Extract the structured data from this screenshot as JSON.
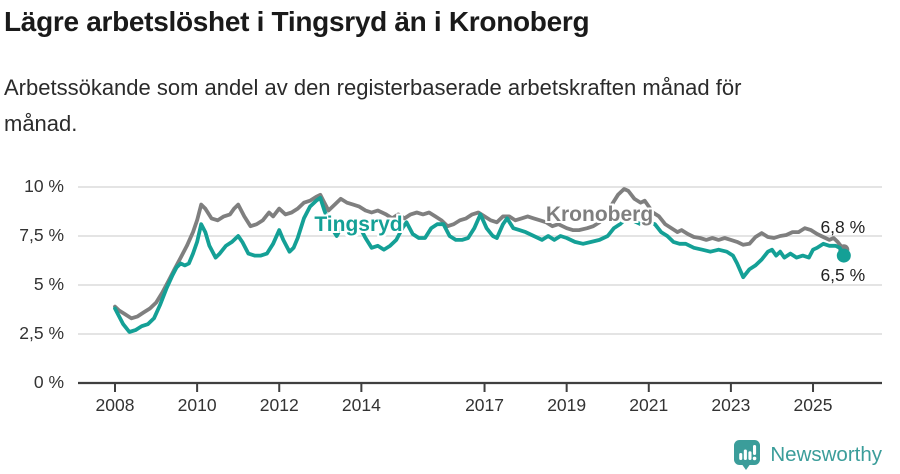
{
  "header": {
    "title": "Lägre arbetslöshet i Tingsryd än i Kronoberg",
    "subtitle": "Arbetssökande som andel av den registerbaserade arbetskraften månad för månad."
  },
  "footer": {
    "brand": "Newsworthy",
    "logo_icon": "bar-chart-speech-bubble-icon"
  },
  "colors": {
    "tingsryd_teal": "#14a096",
    "kronoberg_gray": "#7f7f7f",
    "gridline": "#dcdcdc",
    "axis": "#3f3f3f",
    "tick_text": "#333333",
    "title_text": "#1a1a1a",
    "brand_teal": "#3b9d9a"
  },
  "chart_data": {
    "type": "line",
    "title": "Lägre arbetslöshet i Tingsryd än i Kronoberg",
    "subtitle": "Arbetssökande som andel av den registerbaserade arbetskraften månad för månad.",
    "unit": "%",
    "grid": true,
    "legend_position": "inline-labels",
    "xlim": [
      2007.1,
      2026.7
    ],
    "ylim": [
      0,
      10.5
    ],
    "yticks": [
      {
        "value": 0,
        "label": "0 %"
      },
      {
        "value": 2.5,
        "label": "2,5 %"
      },
      {
        "value": 5,
        "label": "5 %"
      },
      {
        "value": 7.5,
        "label": "7,5 %"
      },
      {
        "value": 10,
        "label": "10 %"
      }
    ],
    "xticks": [
      {
        "value": 2008,
        "label": "2008"
      },
      {
        "value": 2010,
        "label": "2010"
      },
      {
        "value": 2012,
        "label": "2012"
      },
      {
        "value": 2014,
        "label": "2014"
      },
      {
        "value": 2017,
        "label": "2017"
      },
      {
        "value": 2019,
        "label": "2019"
      },
      {
        "value": 2021,
        "label": "2021"
      },
      {
        "value": 2023,
        "label": "2023"
      },
      {
        "value": 2025,
        "label": "2025"
      }
    ],
    "series": [
      {
        "name": "Kronoberg",
        "color": "#7f7f7f",
        "end_label": "6,8 %",
        "end_value": 6.8,
        "label_anchor": [
          2019.8,
          8.55
        ],
        "points": [
          [
            2008.0,
            3.9
          ],
          [
            2008.1,
            3.7
          ],
          [
            2008.25,
            3.5
          ],
          [
            2008.4,
            3.3
          ],
          [
            2008.55,
            3.4
          ],
          [
            2008.7,
            3.6
          ],
          [
            2008.85,
            3.8
          ],
          [
            2009.0,
            4.1
          ],
          [
            2009.15,
            4.6
          ],
          [
            2009.3,
            5.2
          ],
          [
            2009.45,
            5.8
          ],
          [
            2009.6,
            6.4
          ],
          [
            2009.75,
            7.0
          ],
          [
            2009.9,
            7.7
          ],
          [
            2010.0,
            8.3
          ],
          [
            2010.1,
            9.1
          ],
          [
            2010.2,
            8.9
          ],
          [
            2010.35,
            8.4
          ],
          [
            2010.5,
            8.3
          ],
          [
            2010.65,
            8.5
          ],
          [
            2010.8,
            8.6
          ],
          [
            2010.9,
            8.9
          ],
          [
            2011.0,
            9.1
          ],
          [
            2011.15,
            8.5
          ],
          [
            2011.3,
            8.0
          ],
          [
            2011.45,
            8.1
          ],
          [
            2011.6,
            8.3
          ],
          [
            2011.75,
            8.7
          ],
          [
            2011.85,
            8.5
          ],
          [
            2012.0,
            8.9
          ],
          [
            2012.15,
            8.6
          ],
          [
            2012.3,
            8.7
          ],
          [
            2012.45,
            8.9
          ],
          [
            2012.6,
            9.2
          ],
          [
            2012.75,
            9.3
          ],
          [
            2012.9,
            9.5
          ],
          [
            2013.0,
            9.6
          ],
          [
            2013.1,
            9.2
          ],
          [
            2013.2,
            8.8
          ],
          [
            2013.35,
            9.1
          ],
          [
            2013.5,
            9.4
          ],
          [
            2013.65,
            9.2
          ],
          [
            2013.8,
            9.1
          ],
          [
            2013.95,
            9.0
          ],
          [
            2014.1,
            8.8
          ],
          [
            2014.25,
            8.7
          ],
          [
            2014.4,
            8.8
          ],
          [
            2014.6,
            8.6
          ],
          [
            2014.75,
            8.4
          ],
          [
            2014.9,
            8.6
          ],
          [
            2015.05,
            8.4
          ],
          [
            2015.2,
            8.6
          ],
          [
            2015.35,
            8.7
          ],
          [
            2015.5,
            8.6
          ],
          [
            2015.65,
            8.7
          ],
          [
            2015.8,
            8.5
          ],
          [
            2015.95,
            8.3
          ],
          [
            2016.1,
            8.0
          ],
          [
            2016.25,
            8.1
          ],
          [
            2016.4,
            8.3
          ],
          [
            2016.55,
            8.4
          ],
          [
            2016.7,
            8.6
          ],
          [
            2016.85,
            8.7
          ],
          [
            2017.0,
            8.5
          ],
          [
            2017.15,
            8.3
          ],
          [
            2017.3,
            8.2
          ],
          [
            2017.45,
            8.5
          ],
          [
            2017.6,
            8.5
          ],
          [
            2017.75,
            8.3
          ],
          [
            2017.9,
            8.4
          ],
          [
            2018.05,
            8.5
          ],
          [
            2018.2,
            8.4
          ],
          [
            2018.35,
            8.3
          ],
          [
            2018.5,
            8.2
          ],
          [
            2018.65,
            8.0
          ],
          [
            2018.8,
            8.1
          ],
          [
            2019.0,
            7.9
          ],
          [
            2019.15,
            7.8
          ],
          [
            2019.3,
            7.8
          ],
          [
            2019.5,
            7.9
          ],
          [
            2019.65,
            8.0
          ],
          [
            2019.8,
            8.2
          ],
          [
            2019.95,
            8.5
          ],
          [
            2020.1,
            9.1
          ],
          [
            2020.25,
            9.6
          ],
          [
            2020.4,
            9.9
          ],
          [
            2020.5,
            9.8
          ],
          [
            2020.65,
            9.4
          ],
          [
            2020.8,
            9.2
          ],
          [
            2020.9,
            9.3
          ],
          [
            2021.0,
            9.0
          ],
          [
            2021.1,
            8.7
          ],
          [
            2021.25,
            8.5
          ],
          [
            2021.4,
            8.1
          ],
          [
            2021.55,
            7.9
          ],
          [
            2021.7,
            7.7
          ],
          [
            2021.8,
            7.8
          ],
          [
            2021.95,
            7.6
          ],
          [
            2022.1,
            7.45
          ],
          [
            2022.25,
            7.4
          ],
          [
            2022.4,
            7.3
          ],
          [
            2022.55,
            7.4
          ],
          [
            2022.7,
            7.3
          ],
          [
            2022.85,
            7.4
          ],
          [
            2023.0,
            7.3
          ],
          [
            2023.15,
            7.2
          ],
          [
            2023.3,
            7.05
          ],
          [
            2023.45,
            7.1
          ],
          [
            2023.6,
            7.45
          ],
          [
            2023.75,
            7.65
          ],
          [
            2023.9,
            7.45
          ],
          [
            2024.05,
            7.4
          ],
          [
            2024.2,
            7.5
          ],
          [
            2024.35,
            7.55
          ],
          [
            2024.5,
            7.7
          ],
          [
            2024.65,
            7.7
          ],
          [
            2024.8,
            7.9
          ],
          [
            2024.95,
            7.8
          ],
          [
            2025.1,
            7.6
          ],
          [
            2025.25,
            7.45
          ],
          [
            2025.4,
            7.3
          ],
          [
            2025.5,
            7.4
          ],
          [
            2025.6,
            7.2
          ],
          [
            2025.75,
            6.8
          ]
        ]
      },
      {
        "name": "Tingsryd",
        "color": "#14a096",
        "end_label": "6,5 %",
        "end_value": 6.5,
        "label_anchor": [
          2013.93,
          8.05
        ],
        "points": [
          [
            2008.0,
            3.8
          ],
          [
            2008.1,
            3.4
          ],
          [
            2008.2,
            3.0
          ],
          [
            2008.35,
            2.6
          ],
          [
            2008.5,
            2.7
          ],
          [
            2008.65,
            2.9
          ],
          [
            2008.8,
            3.0
          ],
          [
            2008.95,
            3.3
          ],
          [
            2009.1,
            4.0
          ],
          [
            2009.25,
            4.8
          ],
          [
            2009.4,
            5.5
          ],
          [
            2009.5,
            5.9
          ],
          [
            2009.6,
            6.1
          ],
          [
            2009.7,
            6.0
          ],
          [
            2009.8,
            6.1
          ],
          [
            2009.9,
            6.6
          ],
          [
            2010.0,
            7.2
          ],
          [
            2010.1,
            8.1
          ],
          [
            2010.2,
            7.7
          ],
          [
            2010.3,
            7.0
          ],
          [
            2010.45,
            6.4
          ],
          [
            2010.55,
            6.6
          ],
          [
            2010.7,
            7.0
          ],
          [
            2010.85,
            7.2
          ],
          [
            2011.0,
            7.5
          ],
          [
            2011.1,
            7.2
          ],
          [
            2011.25,
            6.6
          ],
          [
            2011.4,
            6.5
          ],
          [
            2011.55,
            6.5
          ],
          [
            2011.7,
            6.6
          ],
          [
            2011.85,
            7.1
          ],
          [
            2012.0,
            7.8
          ],
          [
            2012.1,
            7.3
          ],
          [
            2012.25,
            6.7
          ],
          [
            2012.35,
            6.9
          ],
          [
            2012.45,
            7.4
          ],
          [
            2012.6,
            8.4
          ],
          [
            2012.75,
            9.0
          ],
          [
            2012.9,
            9.3
          ],
          [
            2013.0,
            9.45
          ],
          [
            2013.1,
            8.8
          ],
          [
            2013.25,
            8.0
          ],
          [
            2013.4,
            7.5
          ],
          [
            2013.5,
            7.9
          ],
          [
            2013.65,
            8.3
          ],
          [
            2013.8,
            8.2
          ],
          [
            2013.95,
            8.0
          ],
          [
            2014.1,
            7.4
          ],
          [
            2014.25,
            6.9
          ],
          [
            2014.4,
            7.0
          ],
          [
            2014.55,
            6.8
          ],
          [
            2014.7,
            7.0
          ],
          [
            2014.85,
            7.3
          ],
          [
            2015.0,
            7.9
          ],
          [
            2015.1,
            8.2
          ],
          [
            2015.25,
            7.6
          ],
          [
            2015.4,
            7.4
          ],
          [
            2015.55,
            7.4
          ],
          [
            2015.7,
            7.9
          ],
          [
            2015.85,
            8.1
          ],
          [
            2016.0,
            8.1
          ],
          [
            2016.15,
            7.5
          ],
          [
            2016.3,
            7.3
          ],
          [
            2016.45,
            7.3
          ],
          [
            2016.6,
            7.4
          ],
          [
            2016.75,
            7.9
          ],
          [
            2016.9,
            8.6
          ],
          [
            2017.05,
            7.9
          ],
          [
            2017.2,
            7.5
          ],
          [
            2017.3,
            7.4
          ],
          [
            2017.45,
            8.1
          ],
          [
            2017.55,
            8.4
          ],
          [
            2017.7,
            7.9
          ],
          [
            2017.85,
            7.8
          ],
          [
            2018.0,
            7.7
          ],
          [
            2018.2,
            7.5
          ],
          [
            2018.4,
            7.3
          ],
          [
            2018.55,
            7.5
          ],
          [
            2018.7,
            7.3
          ],
          [
            2018.85,
            7.5
          ],
          [
            2019.0,
            7.4
          ],
          [
            2019.2,
            7.2
          ],
          [
            2019.4,
            7.1
          ],
          [
            2019.6,
            7.2
          ],
          [
            2019.8,
            7.3
          ],
          [
            2020.0,
            7.5
          ],
          [
            2020.15,
            7.9
          ],
          [
            2020.3,
            8.1
          ],
          [
            2020.45,
            8.4
          ],
          [
            2020.6,
            8.3
          ],
          [
            2020.8,
            8.1
          ],
          [
            2021.0,
            8.2
          ],
          [
            2021.15,
            8.1
          ],
          [
            2021.3,
            7.7
          ],
          [
            2021.45,
            7.5
          ],
          [
            2021.6,
            7.2
          ],
          [
            2021.75,
            7.1
          ],
          [
            2021.9,
            7.1
          ],
          [
            2022.1,
            6.9
          ],
          [
            2022.3,
            6.8
          ],
          [
            2022.5,
            6.7
          ],
          [
            2022.7,
            6.8
          ],
          [
            2022.9,
            6.7
          ],
          [
            2023.05,
            6.5
          ],
          [
            2023.15,
            6.1
          ],
          [
            2023.3,
            5.4
          ],
          [
            2023.45,
            5.8
          ],
          [
            2023.6,
            6.0
          ],
          [
            2023.75,
            6.3
          ],
          [
            2023.9,
            6.7
          ],
          [
            2024.0,
            6.8
          ],
          [
            2024.1,
            6.5
          ],
          [
            2024.2,
            6.7
          ],
          [
            2024.3,
            6.4
          ],
          [
            2024.45,
            6.6
          ],
          [
            2024.6,
            6.4
          ],
          [
            2024.75,
            6.5
          ],
          [
            2024.9,
            6.4
          ],
          [
            2025.0,
            6.8
          ],
          [
            2025.1,
            6.9
          ],
          [
            2025.25,
            7.1
          ],
          [
            2025.4,
            7.0
          ],
          [
            2025.55,
            7.0
          ],
          [
            2025.65,
            6.9
          ],
          [
            2025.75,
            6.5
          ]
        ]
      }
    ]
  }
}
